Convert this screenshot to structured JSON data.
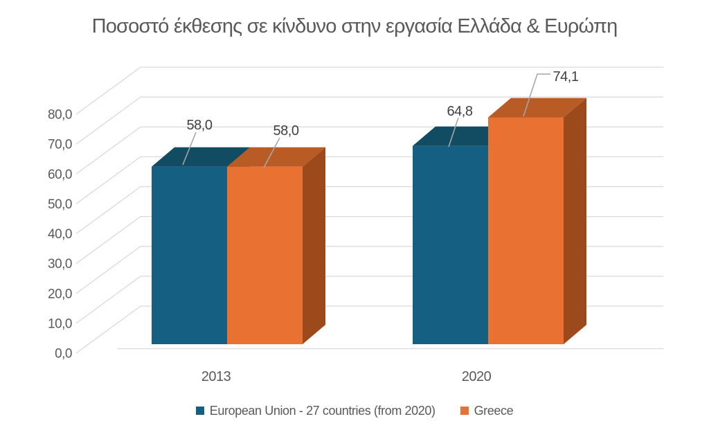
{
  "chart_data": {
    "type": "bar",
    "style": "3d-clustered-column",
    "title": "Ποσοστό έκθεσης σε κίνδυνο στην εργασία Ελλάδα & Ευρώπη",
    "categories": [
      "2013",
      "2020"
    ],
    "series": [
      {
        "name": "European Union - 27 countries (from 2020)",
        "color": "#156082",
        "color_top": "#114C63",
        "color_side": "#0D3B4F",
        "values": [
          58.0,
          64.8
        ],
        "value_labels": [
          "58,0",
          "64,8"
        ]
      },
      {
        "name": "Greece",
        "color": "#E97132",
        "color_top": "#B95B24",
        "color_side": "#9C4A1B",
        "values": [
          58.0,
          74.1
        ],
        "value_labels": [
          "58,0",
          "74,1"
        ]
      }
    ],
    "y_axis": {
      "min": 0,
      "max": 80,
      "step": 10,
      "tick_labels": [
        "0,0",
        "10,0",
        "20,0",
        "30,0",
        "40,0",
        "50,0",
        "60,0",
        "70,0",
        "80,0"
      ]
    },
    "x_axis": {
      "tick_labels": [
        "2013",
        "2020"
      ]
    },
    "grid": true,
    "legend_position": "bottom",
    "colors": {
      "title_text": "#595959",
      "axis_text": "#595959",
      "data_label_text": "#404040",
      "gridline": "#D9D9D9",
      "leader_line": "#A6A6A6",
      "background": "#FFFFFF"
    }
  }
}
